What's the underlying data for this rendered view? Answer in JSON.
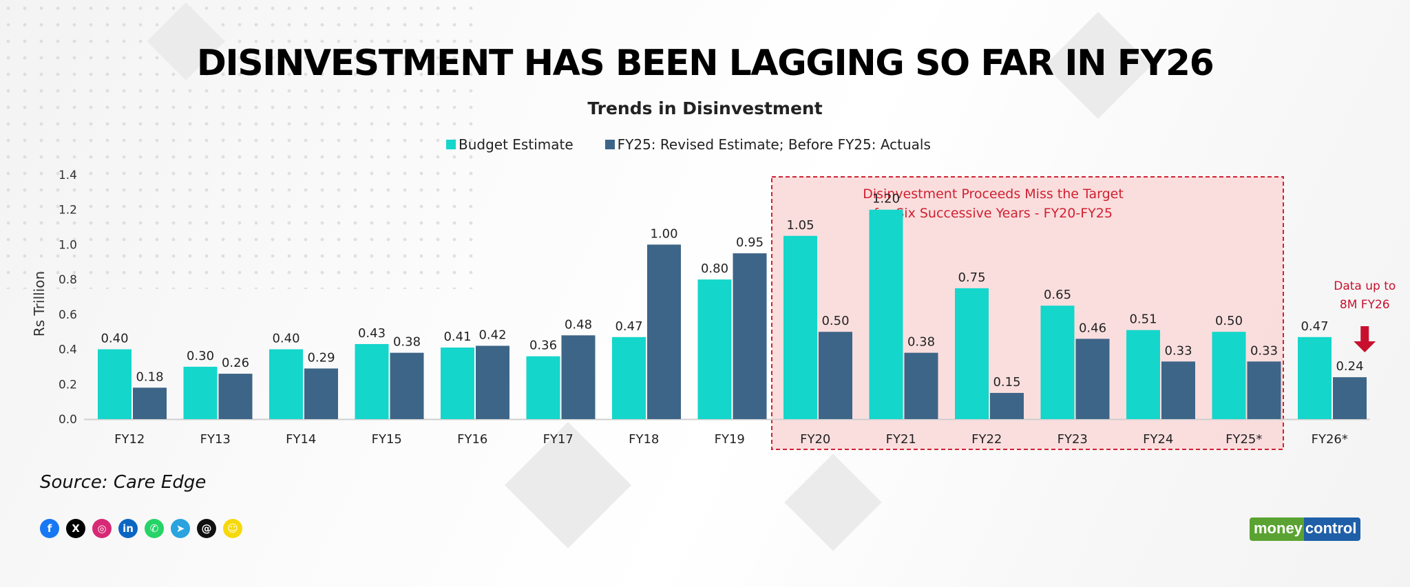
{
  "header": {
    "title": "DISINVESTMENT HAS BEEN LAGGING SO FAR IN FY26"
  },
  "chart_data": {
    "type": "bar",
    "title": "Trends in Disinvestment",
    "ylabel": "Rs Trillion",
    "xlabel": "",
    "ylim": [
      0,
      1.4
    ],
    "yticks": [
      "0.0",
      "0.2",
      "0.4",
      "0.6",
      "0.8",
      "1.0",
      "1.2",
      "1.4"
    ],
    "categories": [
      "FY12",
      "FY13",
      "FY14",
      "FY15",
      "FY16",
      "FY17",
      "FY18",
      "FY19",
      "FY20",
      "FY21",
      "FY22",
      "FY23",
      "FY24",
      "FY25*",
      "FY26*"
    ],
    "series": [
      {
        "name": "Budget Estimate",
        "color": "#14d6cb",
        "values": [
          0.4,
          0.3,
          0.4,
          0.43,
          0.41,
          0.36,
          0.47,
          0.8,
          1.05,
          1.2,
          0.75,
          0.65,
          0.51,
          0.5,
          0.47
        ],
        "labels": [
          "0.40",
          "0.30",
          "0.40",
          "0.43",
          "0.41",
          "0.36",
          "0.47",
          "0.80",
          "1.05",
          "1.20",
          "0.75",
          "0.65",
          "0.51",
          "0.50",
          "0.47"
        ]
      },
      {
        "name": "FY25: Revised Estimate; Before FY25: Actuals",
        "color": "#3d6587",
        "values": [
          0.18,
          0.26,
          0.29,
          0.38,
          0.42,
          0.48,
          1.0,
          0.95,
          0.5,
          0.38,
          0.15,
          0.46,
          0.33,
          0.33,
          0.24
        ],
        "labels": [
          "0.18",
          "0.26",
          "0.29",
          "0.38",
          "0.42",
          "0.48",
          "1.00",
          "0.95",
          "0.50",
          "0.38",
          "0.15",
          "0.46",
          "0.33",
          "0.33",
          "0.24"
        ]
      }
    ],
    "grid": false,
    "legend": "top-center",
    "highlight": {
      "from": "FY20",
      "to": "FY25*",
      "text_line1": "Disinvestment Proceeds Miss the Target",
      "text_line2": "for Six Successive Years - FY20-FY25",
      "color": "#d02030"
    },
    "callout": {
      "category": "FY26*",
      "text_line1": "Data up to",
      "text_line2": "8M FY26",
      "color": "#c8102e"
    }
  },
  "source": "Source: Care Edge",
  "socials": [
    {
      "name": "facebook-icon",
      "glyph": "f",
      "color": "#1877f2"
    },
    {
      "name": "x-icon",
      "glyph": "X",
      "color": "#000000"
    },
    {
      "name": "instagram-icon",
      "glyph": "◎",
      "color": "#d62976"
    },
    {
      "name": "linkedin-icon",
      "glyph": "in",
      "color": "#0a66c2"
    },
    {
      "name": "whatsapp-icon",
      "glyph": "✆",
      "color": "#25d366"
    },
    {
      "name": "telegram-icon",
      "glyph": "➤",
      "color": "#2aa3df"
    },
    {
      "name": "threads-icon",
      "glyph": "@",
      "color": "#111111"
    },
    {
      "name": "snapchat-icon",
      "glyph": "☺",
      "color": "#f5d90a"
    }
  ],
  "brand": {
    "part1": "money",
    "part2": "control"
  }
}
